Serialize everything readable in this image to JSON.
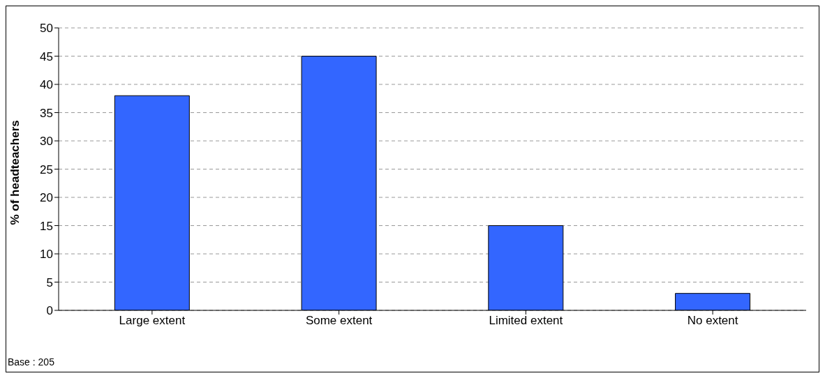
{
  "chart_data": {
    "type": "bar",
    "ylabel": "% of headteachers",
    "categories": [
      "Large extent",
      "Some extent",
      "Limited extent",
      "No extent"
    ],
    "values": [
      38,
      45,
      15,
      3
    ],
    "color": "#3366ff",
    "ylim": [
      0,
      50
    ],
    "yticks": [
      0,
      5,
      10,
      15,
      20,
      25,
      30,
      35,
      40,
      45,
      50
    ],
    "grid": "y",
    "legend": false,
    "annotations": [
      "Base : 205"
    ]
  }
}
